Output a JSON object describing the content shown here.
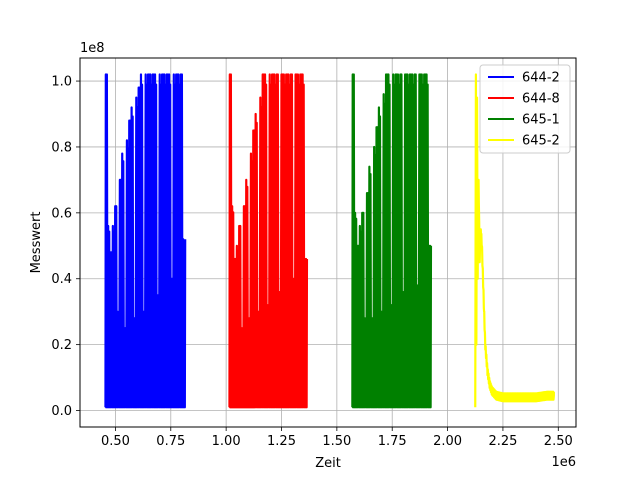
{
  "chart_data": {
    "type": "line",
    "title": "",
    "xlabel": "Zeit",
    "ylabel": "Messwert",
    "x_multiplier_label": "1e6",
    "y_multiplier_label": "1e8",
    "xlim": [
      0.34,
      2.58
    ],
    "ylim": [
      -0.05,
      1.07
    ],
    "x_ticks": [
      0.5,
      0.75,
      1.0,
      1.25,
      1.5,
      1.75,
      2.0,
      2.25,
      2.5
    ],
    "x_tick_labels": [
      "0.50",
      "0.75",
      "1.00",
      "1.25",
      "1.50",
      "1.75",
      "2.00",
      "2.25",
      "2.50"
    ],
    "y_ticks": [
      0.0,
      0.2,
      0.4,
      0.6,
      0.8,
      1.0
    ],
    "y_tick_labels": [
      "0.0",
      "0.2",
      "0.4",
      "0.6",
      "0.8",
      "1.0"
    ],
    "grid": true,
    "legend_position": "top-right",
    "series": [
      {
        "name": "644-2",
        "color": "#0000ff",
        "x_range": [
          0.455,
          0.815
        ],
        "peaks": [
          1.02,
          0.56,
          0.48,
          0.56,
          0.62,
          0.3,
          0.7,
          0.78,
          0.25,
          0.82,
          0.88,
          0.92,
          0.28,
          0.95,
          0.98,
          1.02,
          0.3,
          1.02,
          1.02,
          1.02,
          1.02,
          1.02,
          0.35,
          1.02,
          1.02,
          1.02,
          1.02,
          1.02,
          0.4,
          1.02,
          1.02,
          1.02,
          1.02,
          0.52
        ],
        "floor": 0.01
      },
      {
        "name": "644-8",
        "color": "#ff0000",
        "x_range": [
          1.015,
          1.365
        ],
        "peaks": [
          1.02,
          0.62,
          0.46,
          0.5,
          0.56,
          0.25,
          0.62,
          0.7,
          0.28,
          0.78,
          0.85,
          0.9,
          0.3,
          0.95,
          1.02,
          1.02,
          0.32,
          1.02,
          1.02,
          1.02,
          1.02,
          0.36,
          1.02,
          1.02,
          1.02,
          1.02,
          1.02,
          0.4,
          1.02,
          1.02,
          1.02,
          1.02,
          0.46
        ],
        "floor": 0.01
      },
      {
        "name": "645-1",
        "color": "#008000",
        "x_range": [
          1.57,
          1.925
        ],
        "peaks": [
          1.02,
          0.6,
          0.5,
          0.56,
          0.6,
          0.28,
          0.66,
          0.74,
          0.28,
          0.8,
          0.86,
          0.92,
          0.3,
          0.96,
          1.02,
          1.02,
          0.32,
          1.02,
          1.02,
          1.02,
          1.02,
          0.36,
          1.02,
          1.02,
          1.02,
          1.02,
          1.02,
          0.38,
          1.02,
          1.02,
          1.02,
          1.02,
          0.5
        ],
        "floor": 0.01
      },
      {
        "name": "645-2",
        "color": "#ffff00",
        "x": [
          2.125,
          2.128,
          2.13,
          2.133,
          2.136,
          2.14,
          2.145,
          2.15,
          2.155,
          2.16,
          2.165,
          2.17,
          2.18,
          2.19,
          2.2,
          2.22,
          2.25,
          2.3,
          2.35,
          2.4,
          2.45,
          2.48
        ],
        "y": [
          0.01,
          1.02,
          0.2,
          0.95,
          0.4,
          0.7,
          0.45,
          0.55,
          0.5,
          0.4,
          0.3,
          0.2,
          0.12,
          0.08,
          0.06,
          0.045,
          0.04,
          0.04,
          0.04,
          0.04,
          0.045,
          0.045
        ],
        "noise": 0.012,
        "floor": 0.01
      }
    ]
  }
}
